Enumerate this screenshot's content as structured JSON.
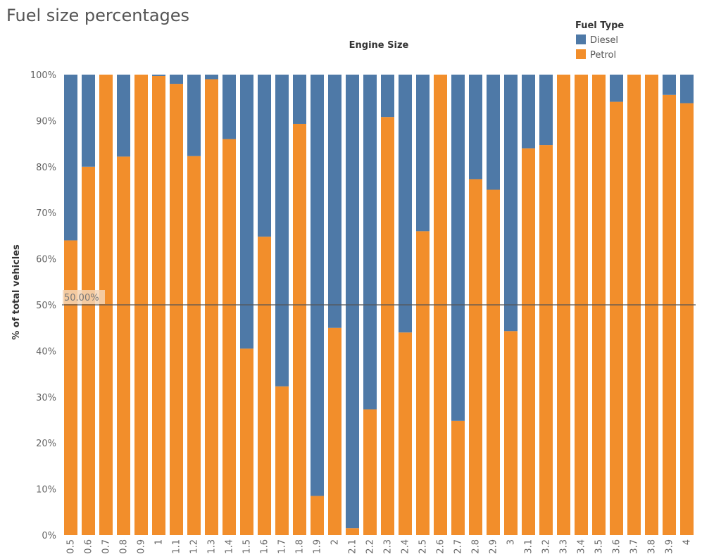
{
  "title": "Fuel size percentages",
  "chart_data": {
    "type": "bar",
    "stacked": true,
    "title": "Fuel size percentages",
    "column_header": "Engine Size",
    "ylabel": "% of total vehicles",
    "xlabel": "",
    "ylim": [
      0,
      100
    ],
    "y_ticks": [
      "0%",
      "10%",
      "20%",
      "30%",
      "40%",
      "50%",
      "60%",
      "70%",
      "80%",
      "90%",
      "100%"
    ],
    "reference_line": {
      "value": 50,
      "label": "50.00%"
    },
    "legend": {
      "title": "Fuel Type",
      "position": "top-right"
    },
    "categories": [
      "0.5",
      "0.6",
      "0.7",
      "0.8",
      "0.9",
      "1",
      "1.1",
      "1.2",
      "1.3",
      "1.4",
      "1.5",
      "1.6",
      "1.7",
      "1.8",
      "1.9",
      "2",
      "2.1",
      "2.2",
      "2.3",
      "2.4",
      "2.5",
      "2.6",
      "2.7",
      "2.8",
      "2.9",
      "3",
      "3.1",
      "3.2",
      "3.3",
      "3.4",
      "3.5",
      "3.6",
      "3.7",
      "3.8",
      "3.9",
      "4"
    ],
    "series": [
      {
        "name": "Petrol",
        "color": "#f28e2b",
        "values": [
          64,
          80,
          100,
          82.2,
          100,
          99.7,
          98,
          82.3,
          99,
          86,
          40.5,
          64.8,
          32.3,
          89.3,
          8.5,
          45,
          1.5,
          27.3,
          90.8,
          44,
          66,
          100,
          24.8,
          77.3,
          75,
          44.3,
          84,
          84.7,
          100,
          100,
          100,
          94.1,
          100,
          100,
          95.6,
          93.8
        ]
      },
      {
        "name": "Diesel",
        "color": "#4e79a7",
        "values": [
          36,
          20,
          0,
          17.8,
          0,
          0.3,
          2,
          17.7,
          1,
          14,
          59.5,
          35.2,
          67.7,
          10.7,
          91.5,
          55,
          98.5,
          72.7,
          9.2,
          56,
          34,
          0,
          75.2,
          22.7,
          25,
          55.7,
          16,
          15.3,
          0,
          0,
          0,
          5.9,
          0,
          0,
          4.4,
          6.2
        ]
      }
    ]
  }
}
